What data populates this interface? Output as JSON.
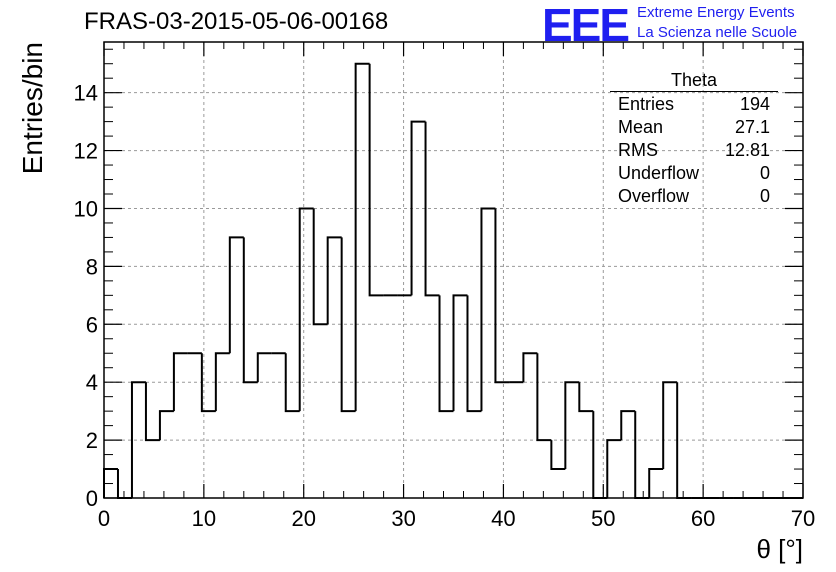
{
  "header": {
    "title": "FRAS-03-2015-05-06-00168",
    "logo_text": "EEE",
    "logo_line1": "Extreme Energy Events",
    "logo_line2": "La Scienza nelle Scuole"
  },
  "stats_box": {
    "title": "Theta",
    "rows": [
      {
        "label": "Entries",
        "value": "194"
      },
      {
        "label": "Mean",
        "value": "27.1"
      },
      {
        "label": "RMS",
        "value": "12.81"
      },
      {
        "label": "Underflow",
        "value": "0"
      },
      {
        "label": "Overflow",
        "value": "0"
      }
    ]
  },
  "colors": {
    "logo": "#1f1ff0",
    "line": "#000000",
    "grid": "#9a9a9a"
  },
  "chart_data": {
    "type": "bar",
    "style": "histogram-step",
    "xlabel": "θ [°]",
    "ylabel": "Entries/bin",
    "xlim": [
      0,
      70
    ],
    "ylim": [
      0,
      15.75
    ],
    "bin_width": 1.4,
    "xticks": [
      0,
      10,
      20,
      30,
      40,
      50,
      60,
      70
    ],
    "yticks": [
      0,
      2,
      4,
      6,
      8,
      10,
      12,
      14
    ],
    "grid": true,
    "values": [
      1,
      0,
      4,
      2,
      3,
      5,
      5,
      3,
      5,
      9,
      4,
      5,
      5,
      3,
      10,
      6,
      9,
      3,
      15,
      7,
      7,
      7,
      13,
      7,
      3,
      7,
      3,
      10,
      4,
      4,
      5,
      2,
      1,
      4,
      3,
      0,
      2,
      3,
      0,
      1,
      4,
      0,
      0,
      0,
      0,
      0,
      0,
      0,
      0,
      0
    ]
  }
}
